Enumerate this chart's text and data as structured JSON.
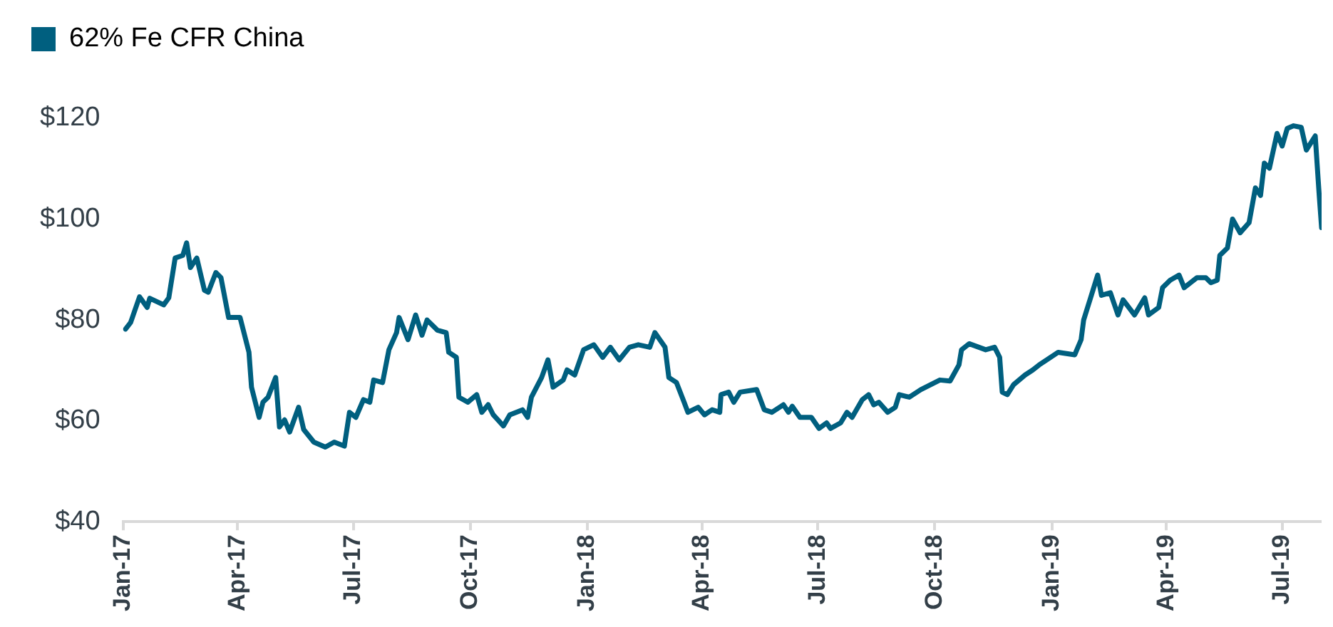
{
  "chart_data": {
    "type": "line",
    "legend": "top left",
    "grid": false,
    "marker": "none",
    "line_style": "solid",
    "xlim": [
      "2017-01-01",
      "2019-08-01"
    ],
    "xticks": [
      {
        "value": "2017-01-01",
        "label": "Jan-17"
      },
      {
        "value": "2017-04-01",
        "label": "Apr-17"
      },
      {
        "value": "2017-07-01",
        "label": "Jul-17"
      },
      {
        "value": "2017-10-01",
        "label": "Oct-17"
      },
      {
        "value": "2018-01-01",
        "label": "Jan-18"
      },
      {
        "value": "2018-04-01",
        "label": "Apr-18"
      },
      {
        "value": "2018-07-01",
        "label": "Jul-18"
      },
      {
        "value": "2018-10-01",
        "label": "Oct-18"
      },
      {
        "value": "2019-01-01",
        "label": "Jan-19"
      },
      {
        "value": "2019-04-01",
        "label": "Apr-19"
      },
      {
        "value": "2019-07-01",
        "label": "Jul-19"
      }
    ],
    "ylim": [
      40,
      120
    ],
    "yticks": [
      {
        "value": 40,
        "label": "$40"
      },
      {
        "value": 60,
        "label": "$60"
      },
      {
        "value": 80,
        "label": "$80"
      },
      {
        "value": 100,
        "label": "$100"
      },
      {
        "value": 120,
        "label": "$120"
      }
    ],
    "x": [
      "2017-01-03",
      "2017-01-07",
      "2017-01-14",
      "2017-01-20",
      "2017-01-22",
      "2017-02-02",
      "2017-02-06",
      "2017-02-11",
      "2017-02-17",
      "2017-02-20",
      "2017-02-23",
      "2017-02-28",
      "2017-03-06",
      "2017-03-09",
      "2017-03-15",
      "2017-03-19",
      "2017-03-25",
      "2017-04-03",
      "2017-04-10",
      "2017-04-12",
      "2017-04-18",
      "2017-04-21",
      "2017-04-25",
      "2017-05-01",
      "2017-05-04",
      "2017-05-08",
      "2017-05-12",
      "2017-05-19",
      "2017-05-23",
      "2017-05-31",
      "2017-06-09",
      "2017-06-16",
      "2017-06-24",
      "2017-06-28",
      "2017-07-03",
      "2017-07-09",
      "2017-07-14",
      "2017-07-17",
      "2017-07-24",
      "2017-07-29",
      "2017-08-04",
      "2017-08-06",
      "2017-08-13",
      "2017-08-19",
      "2017-08-24",
      "2017-08-28",
      "2017-09-05",
      "2017-09-12",
      "2017-09-14",
      "2017-09-20",
      "2017-09-22",
      "2017-09-29",
      "2017-10-06",
      "2017-10-10",
      "2017-10-15",
      "2017-10-19",
      "2017-10-27",
      "2017-11-01",
      "2017-11-11",
      "2017-11-15",
      "2017-11-18",
      "2017-11-26",
      "2017-12-01",
      "2017-12-05",
      "2017-12-13",
      "2017-12-16",
      "2017-12-22",
      "2017-12-29",
      "2018-01-06",
      "2018-01-13",
      "2018-01-19",
      "2018-01-26",
      "2018-02-03",
      "2018-02-10",
      "2018-02-19",
      "2018-02-23",
      "2018-03-03",
      "2018-03-06",
      "2018-03-12",
      "2018-03-18",
      "2018-03-21",
      "2018-03-29",
      "2018-04-03",
      "2018-04-09",
      "2018-04-15",
      "2018-04-16",
      "2018-04-22",
      "2018-04-26",
      "2018-05-01",
      "2018-05-14",
      "2018-05-20",
      "2018-05-26",
      "2018-06-04",
      "2018-06-08",
      "2018-06-11",
      "2018-06-17",
      "2018-06-26",
      "2018-07-02",
      "2018-07-08",
      "2018-07-11",
      "2018-07-19",
      "2018-07-24",
      "2018-07-28",
      "2018-08-05",
      "2018-08-10",
      "2018-08-14",
      "2018-08-18",
      "2018-08-25",
      "2018-08-31",
      "2018-09-03",
      "2018-09-11",
      "2018-09-20",
      "2018-10-05",
      "2018-10-13",
      "2018-10-20",
      "2018-10-22",
      "2018-10-28",
      "2018-11-10",
      "2018-11-17",
      "2018-11-21",
      "2018-11-23",
      "2018-11-27",
      "2018-12-02",
      "2018-12-11",
      "2018-12-17",
      "2018-12-22",
      "2019-01-06",
      "2019-01-19",
      "2019-01-24",
      "2019-01-26",
      "2019-02-06",
      "2019-02-09",
      "2019-02-16",
      "2019-02-22",
      "2019-02-26",
      "2019-03-07",
      "2019-03-15",
      "2019-03-18",
      "2019-03-26",
      "2019-03-29",
      "2019-04-04",
      "2019-04-11",
      "2019-04-15",
      "2019-04-25",
      "2019-05-02",
      "2019-05-06",
      "2019-05-11",
      "2019-05-13",
      "2019-05-19",
      "2019-05-23",
      "2019-05-29",
      "2019-06-05",
      "2019-06-10",
      "2019-06-14",
      "2019-06-17",
      "2019-06-21",
      "2019-06-27",
      "2019-07-01",
      "2019-07-05",
      "2019-07-10",
      "2019-07-16",
      "2019-07-20",
      "2019-07-27",
      "2019-07-30",
      "2019-08-01"
    ],
    "series": [
      {
        "name": "62% Fe CFR China",
        "color": "#005f7f",
        "values": [
          78.2,
          79.5,
          84.6,
          82.5,
          84.3,
          83,
          84.4,
          92.3,
          92.8,
          95.3,
          90.4,
          92.3,
          85.9,
          85.5,
          89.4,
          88.4,
          80.5,
          80.5,
          73.6,
          66.7,
          60.7,
          63.7,
          64.7,
          68.6,
          58.8,
          60.2,
          57.8,
          62.7,
          58.3,
          55.8,
          54.8,
          55.8,
          55,
          61.7,
          60.7,
          64.2,
          63.7,
          68.1,
          67.6,
          74.1,
          77.5,
          80.5,
          76.1,
          81,
          77,
          80,
          78,
          77.5,
          73.6,
          72.6,
          64.7,
          63.7,
          65.2,
          61.7,
          63.2,
          61.2,
          59,
          61.2,
          62.2,
          60.7,
          64.7,
          68.6,
          72.1,
          66.7,
          68.1,
          70.1,
          69.1,
          74.1,
          75.1,
          72.6,
          74.6,
          72.1,
          74.6,
          75.1,
          74.6,
          77.5,
          74.6,
          68.6,
          67.6,
          63.7,
          61.7,
          62.7,
          61.2,
          62.2,
          61.7,
          65.2,
          65.7,
          63.7,
          65.7,
          66.2,
          62.2,
          61.7,
          63.2,
          61.7,
          62.9,
          60.7,
          60.7,
          58.5,
          59.6,
          58.5,
          59.6,
          61.7,
          60.7,
          64.2,
          65.2,
          63.2,
          63.7,
          61.7,
          62.7,
          65.2,
          64.7,
          66.2,
          68.1,
          67.9,
          71.1,
          74.1,
          75.3,
          74.1,
          74.6,
          72.6,
          65.7,
          65.2,
          67.2,
          69.1,
          70.1,
          71.1,
          73.6,
          73.1,
          76.1,
          80,
          88.9,
          84.9,
          85.4,
          81,
          84,
          81,
          84.4,
          81,
          82.5,
          86.4,
          87.9,
          88.9,
          86.4,
          88.4,
          88.4,
          87.4,
          87.9,
          92.8,
          94.3,
          100,
          97.3,
          99.3,
          106.2,
          104.7,
          111.1,
          110.1,
          117,
          114.5,
          118,
          118.5,
          118.2,
          113.7,
          116.5,
          105.2,
          98.3
        ]
      }
    ]
  }
}
